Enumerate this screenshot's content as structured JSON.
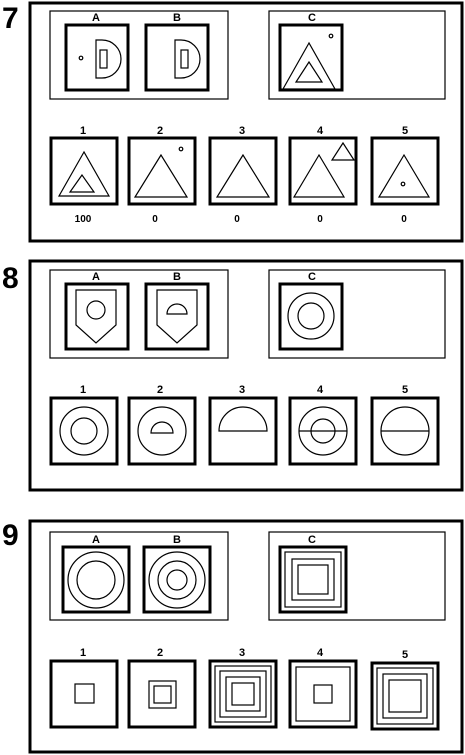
{
  "puzzles": [
    {
      "number": "7",
      "examples": [
        {
          "label": "A"
        },
        {
          "label": "B"
        },
        {
          "label": "C"
        }
      ],
      "options": [
        {
          "label": "1",
          "score": "100"
        },
        {
          "label": "2",
          "score": "0"
        },
        {
          "label": "3",
          "score": "0"
        },
        {
          "label": "4",
          "score": "0"
        },
        {
          "label": "5",
          "score": "0"
        }
      ]
    },
    {
      "number": "8",
      "examples": [
        {
          "label": "A"
        },
        {
          "label": "B"
        },
        {
          "label": "C"
        }
      ],
      "options": [
        {
          "label": "1"
        },
        {
          "label": "2"
        },
        {
          "label": "3"
        },
        {
          "label": "4"
        },
        {
          "label": "5"
        }
      ]
    },
    {
      "number": "9",
      "examples": [
        {
          "label": "A"
        },
        {
          "label": "B"
        },
        {
          "label": "C"
        }
      ],
      "options": [
        {
          "label": "1"
        },
        {
          "label": "2"
        },
        {
          "label": "3"
        },
        {
          "label": "4"
        },
        {
          "label": "5"
        }
      ]
    }
  ]
}
